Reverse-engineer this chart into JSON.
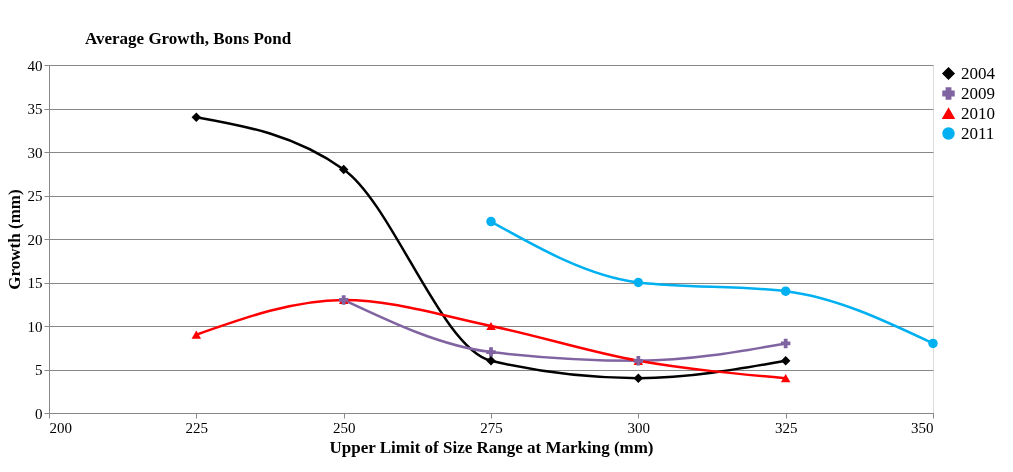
{
  "chart_data": {
    "type": "line",
    "title": "Average Growth,  Bons Pond",
    "xlabel": "Upper Limit of Size Range at Marking (mm)",
    "ylabel": "Growth (mm)",
    "x": [
      225,
      250,
      275,
      300,
      325,
      350
    ],
    "series": [
      {
        "name": "2004",
        "color": "#000000",
        "marker": "diamond",
        "values": [
          34,
          28,
          6,
          4,
          6,
          null
        ]
      },
      {
        "name": "2009",
        "color": "#8064a2",
        "marker": "cross",
        "values": [
          null,
          13,
          7,
          6,
          8,
          null
        ]
      },
      {
        "name": "2010",
        "color": "#ff0000",
        "marker": "triangle",
        "values": [
          9,
          13,
          10,
          6,
          4,
          null
        ]
      },
      {
        "name": "2011",
        "color": "#00b0f0",
        "marker": "circle",
        "values": [
          null,
          null,
          22,
          15,
          14,
          8
        ]
      }
    ],
    "xlim": [
      200,
      350
    ],
    "xticks": [
      200,
      225,
      250,
      275,
      300,
      325,
      350
    ],
    "ylim": [
      0,
      40
    ],
    "yticks": [
      0,
      5,
      10,
      15,
      20,
      25,
      30,
      35,
      40
    ],
    "grid": "y",
    "legend": "top right"
  }
}
